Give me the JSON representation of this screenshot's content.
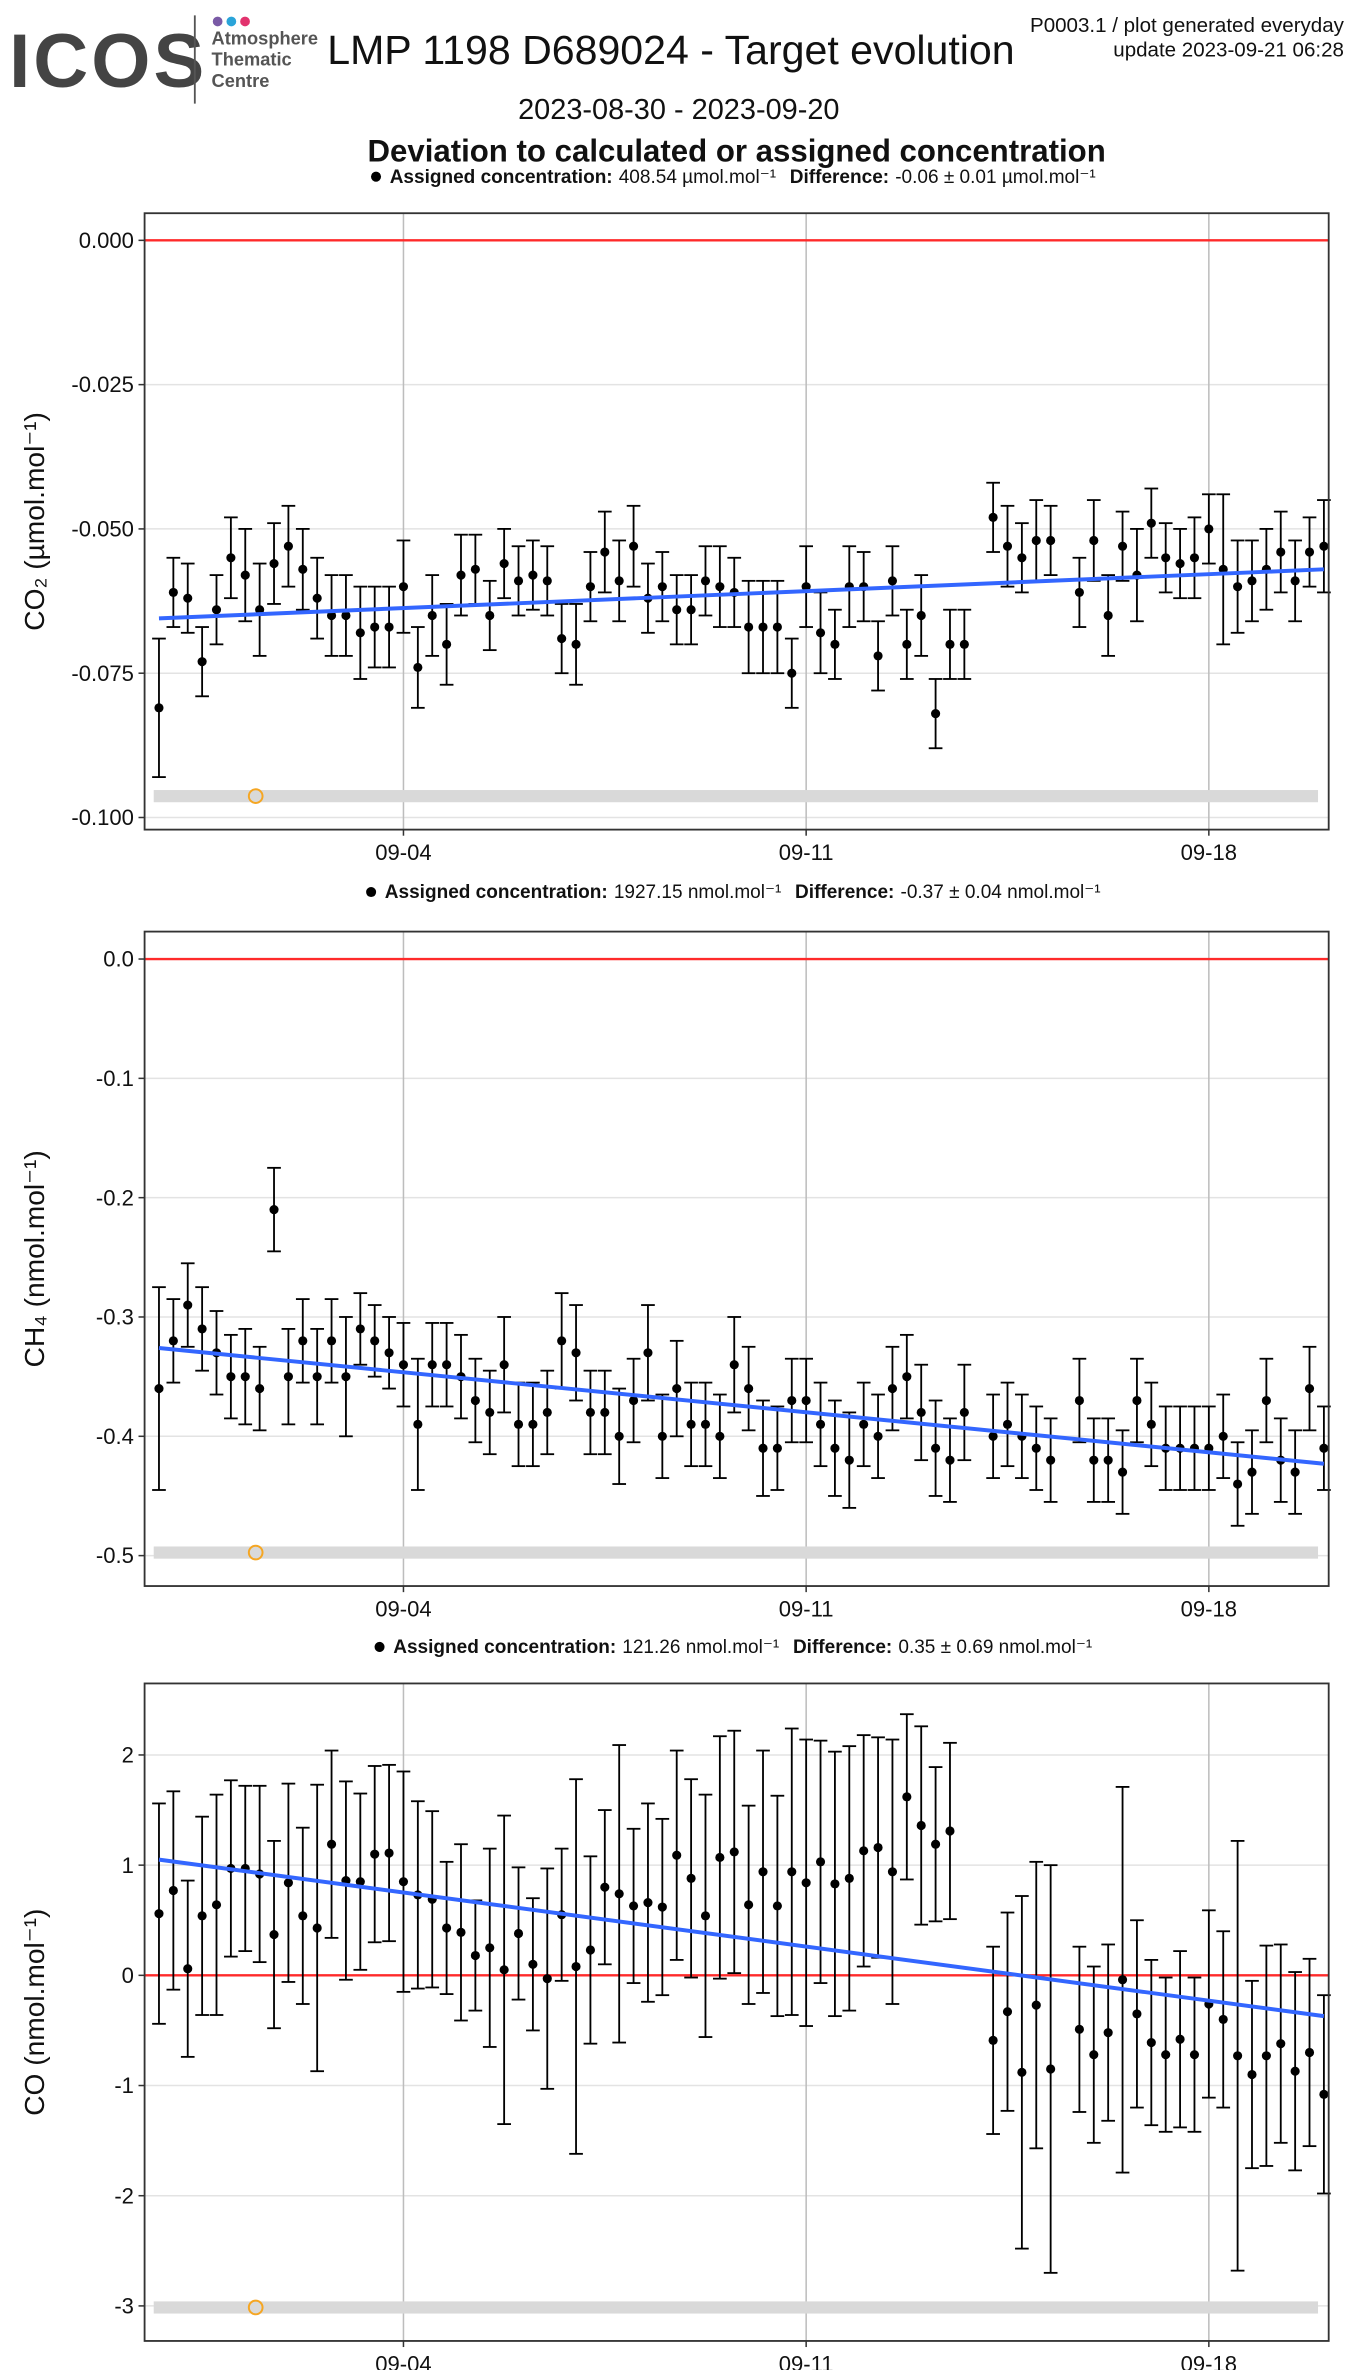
{
  "header": {
    "logo": "ICOS",
    "logo_lines": [
      "Atmosphere",
      "Thematic",
      "Centre"
    ],
    "title": "LMP 1198 D689024 - Target evolution",
    "note_lines": [
      "P0003.1 / plot generated everyday",
      "update  2023-09-21 06:28"
    ],
    "subtitle": "2023-08-30 - 2023-09-20",
    "heading": "Deviation to calculated or assigned concentration"
  },
  "chart_data": [
    {
      "type": "scatter",
      "y_label": "CO₂ (µmol.mol⁻¹)",
      "color": "#000000",
      "grid": true,
      "legend": {
        "assigned_label": "Assigned concentration:",
        "assigned_value": "408.54 µmol.mol⁻¹",
        "difference_label": "Difference:",
        "difference_value": "-0.06 ± 0.01 µmol.mol⁻¹"
      },
      "xlim": [
        "2023-08-30 12:00",
        "2023-09-20 02:00"
      ],
      "xticks": [
        {
          "value": "2023-09-04 00:00",
          "label": "09-04"
        },
        {
          "value": "2023-09-11 00:00",
          "label": "09-11"
        },
        {
          "value": "2023-09-18 00:00",
          "label": "09-18"
        }
      ],
      "ylim": [
        -0.1021,
        0.0047
      ],
      "yticks": [
        {
          "value": -0.1,
          "label": "-0.100"
        },
        {
          "value": -0.075,
          "label": "-0.075"
        },
        {
          "value": -0.05,
          "label": "-0.050"
        },
        {
          "value": -0.025,
          "label": "-0.025"
        },
        {
          "value": 0,
          "label": "0.000"
        }
      ],
      "reference_line": {
        "value": 0,
        "color": "#ff2a2a"
      },
      "trend": {
        "x": [
          "2023-08-30 18:00",
          "2023-09-20 00:00"
        ],
        "values": [
          -0.0655,
          -0.057
        ],
        "color": "#3366ff"
      },
      "x": [
        "2023-08-30 18:00",
        "2023-08-31 00:00",
        "2023-08-31 06:00",
        "2023-08-31 12:00",
        "2023-08-31 18:00",
        "2023-09-01 00:00",
        "2023-09-01 06:00",
        "2023-09-01 12:00",
        "2023-09-01 18:00",
        "2023-09-02 00:00",
        "2023-09-02 06:00",
        "2023-09-02 12:00",
        "2023-09-02 18:00",
        "2023-09-03 00:00",
        "2023-09-03 06:00",
        "2023-09-03 12:00",
        "2023-09-03 18:00",
        "2023-09-04 00:00",
        "2023-09-04 06:00",
        "2023-09-04 12:00",
        "2023-09-04 18:00",
        "2023-09-05 00:00",
        "2023-09-05 06:00",
        "2023-09-05 12:00",
        "2023-09-05 18:00",
        "2023-09-06 00:00",
        "2023-09-06 06:00",
        "2023-09-06 12:00",
        "2023-09-06 18:00",
        "2023-09-07 00:00",
        "2023-09-07 06:00",
        "2023-09-07 12:00",
        "2023-09-07 18:00",
        "2023-09-08 00:00",
        "2023-09-08 06:00",
        "2023-09-08 12:00",
        "2023-09-08 18:00",
        "2023-09-09 00:00",
        "2023-09-09 06:00",
        "2023-09-09 12:00",
        "2023-09-09 18:00",
        "2023-09-10 00:00",
        "2023-09-10 06:00",
        "2023-09-10 12:00",
        "2023-09-10 18:00",
        "2023-09-11 00:00",
        "2023-09-11 06:00",
        "2023-09-11 12:00",
        "2023-09-11 18:00",
        "2023-09-12 00:00",
        "2023-09-12 06:00",
        "2023-09-12 12:00",
        "2023-09-12 18:00",
        "2023-09-13 00:00",
        "2023-09-13 06:00",
        "2023-09-13 12:00",
        "2023-09-13 18:00",
        "2023-09-14 00:00",
        "2023-09-14 06:00",
        "2023-09-14 12:00",
        "2023-09-14 18:00",
        "2023-09-15 00:00",
        "2023-09-15 06:00",
        "2023-09-15 12:00",
        "2023-09-15 18:00",
        "2023-09-16 00:00",
        "2023-09-16 06:00",
        "2023-09-16 12:00",
        "2023-09-16 18:00",
        "2023-09-17 00:00",
        "2023-09-17 06:00",
        "2023-09-17 12:00",
        "2023-09-17 18:00",
        "2023-09-18 00:00",
        "2023-09-18 06:00",
        "2023-09-18 12:00",
        "2023-09-18 18:00",
        "2023-09-19 00:00",
        "2023-09-19 06:00",
        "2023-09-19 12:00",
        "2023-09-19 18:00",
        "2023-09-20 00:00"
      ],
      "values": [
        -0.081,
        -0.061,
        -0.062,
        -0.073,
        -0.064,
        -0.055,
        -0.058,
        -0.064,
        -0.056,
        -0.053,
        -0.057,
        -0.062,
        -0.065,
        -0.065,
        -0.068,
        -0.067,
        -0.067,
        -0.06,
        -0.074,
        -0.065,
        -0.07,
        -0.058,
        -0.057,
        -0.065,
        -0.056,
        -0.059,
        -0.058,
        -0.059,
        -0.069,
        -0.07,
        -0.06,
        -0.054,
        -0.059,
        -0.053,
        -0.062,
        -0.06,
        -0.064,
        -0.064,
        -0.059,
        -0.06,
        -0.061,
        -0.067,
        -0.067,
        -0.067,
        -0.075,
        -0.06,
        -0.068,
        -0.07,
        -0.06,
        -0.06,
        -0.072,
        -0.059,
        -0.07,
        -0.065,
        -0.082,
        -0.07,
        -0.07,
        null,
        -0.048,
        -0.053,
        -0.055,
        -0.052,
        -0.052,
        null,
        -0.061,
        -0.052,
        -0.065,
        -0.053,
        -0.058,
        -0.049,
        -0.055,
        -0.056,
        -0.055,
        -0.05,
        -0.057,
        -0.06,
        -0.059,
        -0.057,
        -0.054,
        -0.059,
        -0.054,
        -0.053
      ],
      "errors": [
        0.012,
        0.006,
        0.006,
        0.006,
        0.006,
        0.007,
        0.008,
        0.008,
        0.007,
        0.007,
        0.007,
        0.007,
        0.007,
        0.007,
        0.008,
        0.007,
        0.007,
        0.008,
        0.007,
        0.007,
        0.007,
        0.007,
        0.006,
        0.006,
        0.006,
        0.006,
        0.006,
        0.006,
        0.006,
        0.007,
        0.006,
        0.007,
        0.007,
        0.007,
        0.006,
        0.006,
        0.006,
        0.006,
        0.006,
        0.007,
        0.006,
        0.008,
        0.008,
        0.008,
        0.006,
        0.007,
        0.007,
        0.006,
        0.007,
        0.006,
        0.006,
        0.006,
        0.006,
        0.007,
        0.006,
        0.006,
        0.006,
        null,
        0.006,
        0.007,
        0.006,
        0.007,
        0.006,
        null,
        0.006,
        0.007,
        0.007,
        0.006,
        0.008,
        0.006,
        0.006,
        0.006,
        0.007,
        0.006,
        0.013,
        0.008,
        0.007,
        0.007,
        0.007,
        0.007,
        0.006,
        0.008
      ]
    },
    {
      "type": "scatter",
      "y_label": "CH₄ (nmol.mol⁻¹)",
      "color": "#000000",
      "grid": true,
      "legend": {
        "assigned_label": "Assigned concentration:",
        "assigned_value": "1927.15 nmol.mol⁻¹",
        "difference_label": "Difference:",
        "difference_value": "-0.37 ± 0.04 nmol.mol⁻¹"
      },
      "xlim": [
        "2023-08-30 12:00",
        "2023-09-20 02:00"
      ],
      "xticks": [
        {
          "value": "2023-09-04 00:00",
          "label": "09-04"
        },
        {
          "value": "2023-09-11 00:00",
          "label": "09-11"
        },
        {
          "value": "2023-09-18 00:00",
          "label": "09-18"
        }
      ],
      "ylim": [
        -0.5255,
        0.023
      ],
      "yticks": [
        -0.5,
        -0.4,
        -0.3,
        -0.2,
        -0.1,
        {
          "value": 0,
          "label": "0.0"
        }
      ],
      "reference_line": {
        "value": 0,
        "color": "#ff2a2a"
      },
      "trend": {
        "x": [
          "2023-08-30 18:00",
          "2023-09-20 00:00"
        ],
        "values": [
          -0.326,
          -0.423
        ],
        "color": "#3366ff"
      },
      "x": [
        "2023-08-30 18:00",
        "2023-08-31 00:00",
        "2023-08-31 06:00",
        "2023-08-31 12:00",
        "2023-08-31 18:00",
        "2023-09-01 00:00",
        "2023-09-01 06:00",
        "2023-09-01 12:00",
        "2023-09-01 18:00",
        "2023-09-02 00:00",
        "2023-09-02 06:00",
        "2023-09-02 12:00",
        "2023-09-02 18:00",
        "2023-09-03 00:00",
        "2023-09-03 06:00",
        "2023-09-03 12:00",
        "2023-09-03 18:00",
        "2023-09-04 00:00",
        "2023-09-04 06:00",
        "2023-09-04 12:00",
        "2023-09-04 18:00",
        "2023-09-05 00:00",
        "2023-09-05 06:00",
        "2023-09-05 12:00",
        "2023-09-05 18:00",
        "2023-09-06 00:00",
        "2023-09-06 06:00",
        "2023-09-06 12:00",
        "2023-09-06 18:00",
        "2023-09-07 00:00",
        "2023-09-07 06:00",
        "2023-09-07 12:00",
        "2023-09-07 18:00",
        "2023-09-08 00:00",
        "2023-09-08 06:00",
        "2023-09-08 12:00",
        "2023-09-08 18:00",
        "2023-09-09 00:00",
        "2023-09-09 06:00",
        "2023-09-09 12:00",
        "2023-09-09 18:00",
        "2023-09-10 00:00",
        "2023-09-10 06:00",
        "2023-09-10 12:00",
        "2023-09-10 18:00",
        "2023-09-11 00:00",
        "2023-09-11 06:00",
        "2023-09-11 12:00",
        "2023-09-11 18:00",
        "2023-09-12 00:00",
        "2023-09-12 06:00",
        "2023-09-12 12:00",
        "2023-09-12 18:00",
        "2023-09-13 00:00",
        "2023-09-13 06:00",
        "2023-09-13 12:00",
        "2023-09-13 18:00",
        "2023-09-14 00:00",
        "2023-09-14 06:00",
        "2023-09-14 12:00",
        "2023-09-14 18:00",
        "2023-09-15 00:00",
        "2023-09-15 06:00",
        "2023-09-15 12:00",
        "2023-09-15 18:00",
        "2023-09-16 00:00",
        "2023-09-16 06:00",
        "2023-09-16 12:00",
        "2023-09-16 18:00",
        "2023-09-17 00:00",
        "2023-09-17 06:00",
        "2023-09-17 12:00",
        "2023-09-17 18:00",
        "2023-09-18 00:00",
        "2023-09-18 06:00",
        "2023-09-18 12:00",
        "2023-09-18 18:00",
        "2023-09-19 00:00",
        "2023-09-19 06:00",
        "2023-09-19 12:00",
        "2023-09-19 18:00",
        "2023-09-20 00:00"
      ],
      "values": [
        -0.36,
        -0.32,
        -0.29,
        -0.31,
        -0.33,
        -0.35,
        -0.35,
        -0.36,
        -0.21,
        -0.35,
        -0.32,
        -0.35,
        -0.32,
        -0.35,
        -0.31,
        -0.32,
        -0.33,
        -0.34,
        -0.39,
        -0.34,
        -0.34,
        -0.35,
        -0.37,
        -0.38,
        -0.34,
        -0.39,
        -0.39,
        -0.38,
        -0.32,
        -0.33,
        -0.38,
        -0.38,
        -0.4,
        -0.37,
        -0.33,
        -0.4,
        -0.36,
        -0.39,
        -0.39,
        -0.4,
        -0.34,
        -0.36,
        -0.41,
        -0.41,
        -0.37,
        -0.37,
        -0.39,
        -0.41,
        -0.42,
        -0.39,
        -0.4,
        -0.36,
        -0.35,
        -0.38,
        -0.41,
        -0.42,
        -0.38,
        null,
        -0.4,
        -0.39,
        -0.4,
        -0.41,
        -0.42,
        null,
        -0.37,
        -0.42,
        -0.42,
        -0.43,
        -0.37,
        -0.39,
        -0.41,
        -0.41,
        -0.41,
        -0.41,
        -0.4,
        -0.44,
        -0.43,
        -0.37,
        -0.42,
        -0.43,
        -0.36,
        -0.41
      ],
      "errors": [
        0.085,
        0.035,
        0.035,
        0.035,
        0.035,
        0.035,
        0.04,
        0.035,
        0.035,
        0.04,
        0.035,
        0.04,
        0.035,
        0.05,
        0.03,
        0.03,
        0.03,
        0.035,
        0.055,
        0.035,
        0.035,
        0.035,
        0.035,
        0.035,
        0.04,
        0.035,
        0.035,
        0.035,
        0.04,
        0.04,
        0.035,
        0.035,
        0.04,
        0.035,
        0.04,
        0.035,
        0.04,
        0.035,
        0.035,
        0.035,
        0.04,
        0.035,
        0.04,
        0.035,
        0.035,
        0.035,
        0.035,
        0.04,
        0.04,
        0.035,
        0.035,
        0.035,
        0.035,
        0.04,
        0.04,
        0.035,
        0.04,
        null,
        0.035,
        0.035,
        0.035,
        0.035,
        0.035,
        null,
        0.035,
        0.035,
        0.035,
        0.035,
        0.035,
        0.035,
        0.035,
        0.035,
        0.035,
        0.035,
        0.035,
        0.035,
        0.035,
        0.035,
        0.035,
        0.035,
        0.035,
        0.035
      ]
    },
    {
      "type": "scatter",
      "y_label": "CO (nmol.mol⁻¹)",
      "color": "#000000",
      "grid": true,
      "legend": {
        "assigned_label": "Assigned concentration:",
        "assigned_value": "121.26 nmol.mol⁻¹",
        "difference_label": "Difference:",
        "difference_value": "0.35 ± 0.69 nmol.mol⁻¹"
      },
      "xlim": [
        "2023-08-30 12:00",
        "2023-09-20 02:00"
      ],
      "xticks": [
        {
          "value": "2023-09-04 00:00",
          "label": "09-04"
        },
        {
          "value": "2023-09-11 00:00",
          "label": "09-11"
        },
        {
          "value": "2023-09-18 00:00",
          "label": "09-18"
        }
      ],
      "ylim": [
        -3.318,
        2.649
      ],
      "yticks": [
        -3,
        -2,
        -1,
        0,
        1,
        2
      ],
      "reference_line": {
        "value": 0,
        "color": "#ff2a2a"
      },
      "trend": {
        "x": [
          "2023-08-30 18:00",
          "2023-09-20 00:00"
        ],
        "values": [
          1.05,
          -0.37
        ],
        "color": "#3366ff"
      },
      "x": [
        "2023-08-30 18:00",
        "2023-08-31 00:00",
        "2023-08-31 06:00",
        "2023-08-31 12:00",
        "2023-08-31 18:00",
        "2023-09-01 00:00",
        "2023-09-01 06:00",
        "2023-09-01 12:00",
        "2023-09-01 18:00",
        "2023-09-02 00:00",
        "2023-09-02 06:00",
        "2023-09-02 12:00",
        "2023-09-02 18:00",
        "2023-09-03 00:00",
        "2023-09-03 06:00",
        "2023-09-03 12:00",
        "2023-09-03 18:00",
        "2023-09-04 00:00",
        "2023-09-04 06:00",
        "2023-09-04 12:00",
        "2023-09-04 18:00",
        "2023-09-05 00:00",
        "2023-09-05 06:00",
        "2023-09-05 12:00",
        "2023-09-05 18:00",
        "2023-09-06 00:00",
        "2023-09-06 06:00",
        "2023-09-06 12:00",
        "2023-09-06 18:00",
        "2023-09-07 00:00",
        "2023-09-07 06:00",
        "2023-09-07 12:00",
        "2023-09-07 18:00",
        "2023-09-08 00:00",
        "2023-09-08 06:00",
        "2023-09-08 12:00",
        "2023-09-08 18:00",
        "2023-09-09 00:00",
        "2023-09-09 06:00",
        "2023-09-09 12:00",
        "2023-09-09 18:00",
        "2023-09-10 00:00",
        "2023-09-10 06:00",
        "2023-09-10 12:00",
        "2023-09-10 18:00",
        "2023-09-11 00:00",
        "2023-09-11 06:00",
        "2023-09-11 12:00",
        "2023-09-11 18:00",
        "2023-09-12 00:00",
        "2023-09-12 06:00",
        "2023-09-12 12:00",
        "2023-09-12 18:00",
        "2023-09-13 00:00",
        "2023-09-13 06:00",
        "2023-09-13 12:00",
        "2023-09-13 18:00",
        "2023-09-14 00:00",
        "2023-09-14 06:00",
        "2023-09-14 12:00",
        "2023-09-14 18:00",
        "2023-09-15 00:00",
        "2023-09-15 06:00",
        "2023-09-15 12:00",
        "2023-09-15 18:00",
        "2023-09-16 00:00",
        "2023-09-16 06:00",
        "2023-09-16 12:00",
        "2023-09-16 18:00",
        "2023-09-17 00:00",
        "2023-09-17 06:00",
        "2023-09-17 12:00",
        "2023-09-17 18:00",
        "2023-09-18 00:00",
        "2023-09-18 06:00",
        "2023-09-18 12:00",
        "2023-09-18 18:00",
        "2023-09-19 00:00",
        "2023-09-19 06:00",
        "2023-09-19 12:00",
        "2023-09-19 18:00",
        "2023-09-20 00:00"
      ],
      "values": [
        0.56,
        0.77,
        0.06,
        0.54,
        0.64,
        0.97,
        0.97,
        0.92,
        0.37,
        0.84,
        0.54,
        0.43,
        1.19,
        0.86,
        0.85,
        1.1,
        1.11,
        0.85,
        0.73,
        0.69,
        0.43,
        0.39,
        0.18,
        0.25,
        0.05,
        0.38,
        0.1,
        -0.03,
        0.55,
        0.08,
        0.23,
        0.8,
        0.74,
        0.63,
        0.66,
        0.62,
        1.09,
        0.88,
        0.54,
        1.07,
        1.12,
        0.64,
        0.94,
        0.63,
        0.94,
        0.84,
        1.03,
        0.83,
        0.88,
        1.13,
        1.16,
        0.94,
        1.62,
        1.36,
        1.19,
        1.31,
        null,
        null,
        -0.59,
        -0.33,
        -0.88,
        -0.27,
        -0.85,
        null,
        -0.49,
        -0.72,
        -0.52,
        -0.04,
        -0.35,
        -0.61,
        -0.72,
        -0.58,
        -0.72,
        -0.26,
        -0.4,
        -0.73,
        -0.9,
        -0.73,
        -0.62,
        -0.87,
        -0.7,
        -1.08
      ],
      "errors": [
        1.0,
        0.9,
        0.8,
        0.9,
        1.0,
        0.8,
        0.75,
        0.8,
        0.85,
        0.9,
        0.8,
        1.3,
        0.85,
        0.9,
        0.8,
        0.8,
        0.8,
        1.0,
        0.85,
        0.8,
        0.6,
        0.8,
        0.5,
        0.9,
        1.4,
        0.6,
        0.6,
        1.0,
        0.6,
        1.7,
        0.85,
        0.7,
        1.35,
        0.7,
        0.9,
        0.8,
        0.95,
        0.9,
        1.1,
        1.1,
        1.1,
        0.9,
        1.1,
        1.0,
        1.3,
        1.3,
        1.1,
        1.2,
        1.2,
        1.05,
        1.0,
        1.2,
        0.75,
        0.9,
        0.7,
        0.8,
        null,
        null,
        0.85,
        0.9,
        1.6,
        1.3,
        1.85,
        null,
        0.75,
        0.8,
        0.8,
        1.75,
        0.85,
        0.75,
        0.7,
        0.8,
        0.7,
        0.85,
        0.8,
        1.95,
        0.85,
        1.0,
        0.9,
        0.9,
        0.85,
        0.9
      ]
    }
  ]
}
